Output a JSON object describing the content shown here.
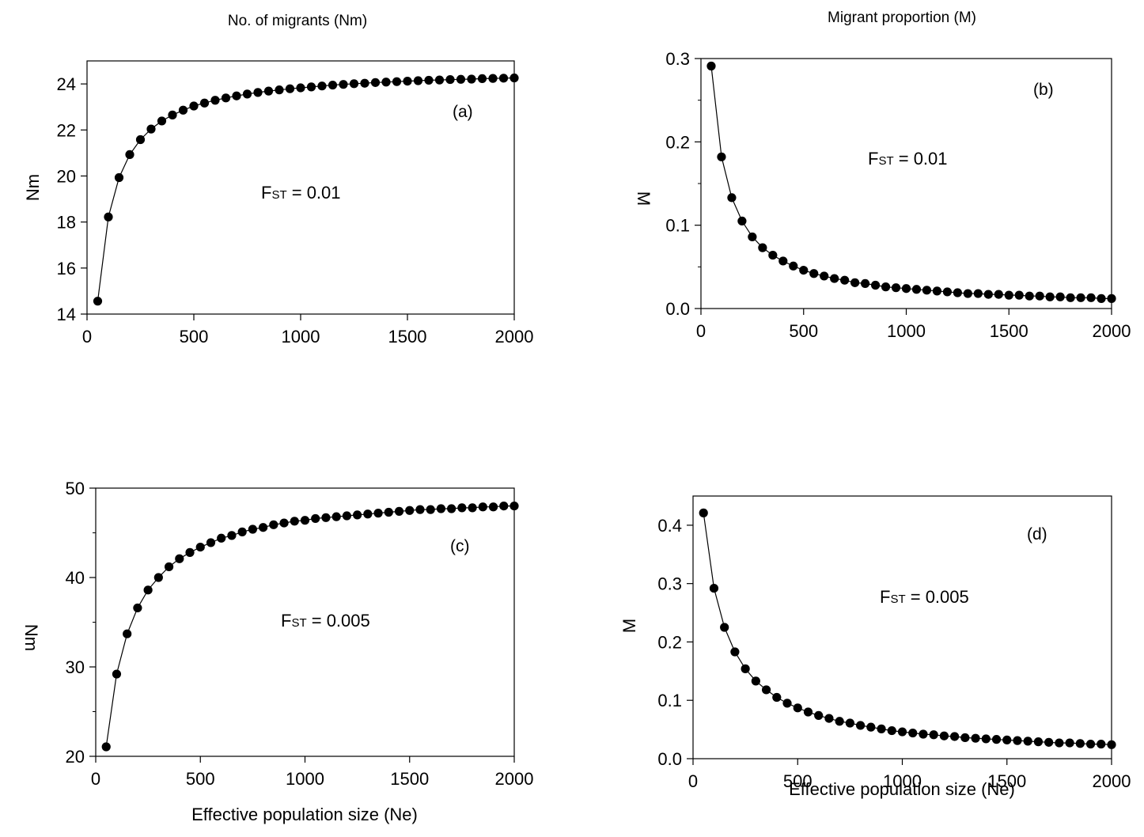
{
  "column_titles": {
    "left": "No. of migrants (Nm)",
    "right": "Migrant proportion (M)"
  },
  "chart_data": [
    {
      "id": "a",
      "type": "line",
      "panel_label": "(a)",
      "annotation": {
        "main": "F",
        "sub": "ST",
        "rest": " = 0.01"
      },
      "ylabel": "Nm",
      "xlabel": "",
      "xlim": [
        0,
        2000
      ],
      "ylim": [
        14,
        25
      ],
      "xticks": [
        0,
        500,
        1000,
        1500,
        2000
      ],
      "yticks": [
        14,
        16,
        18,
        20,
        22,
        24
      ],
      "yminor_step": null,
      "ylabel_flipped": false,
      "markers": "filled-circle",
      "x": [
        50,
        100,
        150,
        200,
        250,
        300,
        350,
        400,
        450,
        500,
        550,
        600,
        650,
        700,
        750,
        800,
        850,
        900,
        950,
        1000,
        1050,
        1100,
        1150,
        1200,
        1250,
        1300,
        1350,
        1400,
        1450,
        1500,
        1550,
        1600,
        1650,
        1700,
        1750,
        1800,
        1850,
        1900,
        1950,
        2000
      ],
      "y": [
        14.56,
        18.22,
        19.93,
        20.93,
        21.58,
        22.04,
        22.39,
        22.65,
        22.86,
        23.04,
        23.17,
        23.29,
        23.39,
        23.48,
        23.56,
        23.63,
        23.69,
        23.74,
        23.79,
        23.83,
        23.87,
        23.91,
        23.95,
        23.98,
        24.01,
        24.03,
        24.06,
        24.08,
        24.1,
        24.12,
        24.14,
        24.16,
        24.17,
        24.19,
        24.2,
        24.21,
        24.23,
        24.24,
        24.25,
        24.26
      ]
    },
    {
      "id": "b",
      "type": "line",
      "panel_label": "(b)",
      "annotation": {
        "main": "F",
        "sub": "ST",
        "rest": " = 0.01"
      },
      "ylabel": "M",
      "xlabel": "",
      "xlim": [
        0,
        2000
      ],
      "ylim": [
        0,
        0.3
      ],
      "xticks": [
        0,
        500,
        1000,
        1500,
        2000
      ],
      "yticks": [
        0.0,
        0.1,
        0.2,
        0.3
      ],
      "yminor_step": 0.05,
      "ylabel_flipped": true,
      "markers": "filled-circle",
      "x": [
        50,
        100,
        150,
        200,
        250,
        300,
        350,
        400,
        450,
        500,
        550,
        600,
        650,
        700,
        750,
        800,
        850,
        900,
        950,
        1000,
        1050,
        1100,
        1150,
        1200,
        1250,
        1300,
        1350,
        1400,
        1450,
        1500,
        1550,
        1600,
        1650,
        1700,
        1750,
        1800,
        1850,
        1900,
        1950,
        2000
      ],
      "y": [
        0.291,
        0.182,
        0.133,
        0.105,
        0.086,
        0.073,
        0.064,
        0.057,
        0.051,
        0.046,
        0.042,
        0.039,
        0.036,
        0.034,
        0.031,
        0.03,
        0.028,
        0.026,
        0.025,
        0.024,
        0.023,
        0.022,
        0.021,
        0.02,
        0.019,
        0.018,
        0.018,
        0.017,
        0.017,
        0.016,
        0.016,
        0.015,
        0.015,
        0.014,
        0.014,
        0.013,
        0.013,
        0.013,
        0.012,
        0.012
      ]
    },
    {
      "id": "c",
      "type": "line",
      "panel_label": "(c)",
      "annotation": {
        "main": "F",
        "sub": "ST",
        "rest": " = 0.005"
      },
      "ylabel": "Nm",
      "xlabel": "Effective population size (Ne)",
      "xlim": [
        0,
        2000
      ],
      "ylim": [
        20,
        50
      ],
      "xticks": [
        0,
        500,
        1000,
        1500,
        2000
      ],
      "yticks": [
        20,
        30,
        40,
        50
      ],
      "yminor_step": 5,
      "ylabel_flipped": true,
      "markers": "filled-circle",
      "x": [
        50,
        100,
        150,
        200,
        250,
        300,
        350,
        400,
        450,
        500,
        550,
        600,
        650,
        700,
        750,
        800,
        850,
        900,
        950,
        1000,
        1050,
        1100,
        1150,
        1200,
        1250,
        1300,
        1350,
        1400,
        1450,
        1500,
        1550,
        1600,
        1650,
        1700,
        1750,
        1800,
        1850,
        1900,
        1950,
        2000
      ],
      "y": [
        21.06,
        29.2,
        33.7,
        36.6,
        38.6,
        40.0,
        41.2,
        42.1,
        42.8,
        43.4,
        43.9,
        44.4,
        44.7,
        45.1,
        45.4,
        45.6,
        45.9,
        46.1,
        46.3,
        46.4,
        46.6,
        46.7,
        46.8,
        46.9,
        47.0,
        47.1,
        47.2,
        47.3,
        47.4,
        47.5,
        47.6,
        47.6,
        47.7,
        47.7,
        47.8,
        47.8,
        47.9,
        47.9,
        48.0,
        48.0
      ]
    },
    {
      "id": "d",
      "type": "line",
      "panel_label": "(d)",
      "annotation": {
        "main": "F",
        "sub": "ST",
        "rest": " = 0.005"
      },
      "ylabel": "M",
      "xlabel": "Effective population size (Ne)",
      "xlim": [
        0,
        2000
      ],
      "ylim": [
        0,
        0.45
      ],
      "xticks": [
        0,
        500,
        1000,
        1500,
        2000
      ],
      "yticks": [
        0.0,
        0.1,
        0.2,
        0.3,
        0.4
      ],
      "yminor_step": null,
      "ylabel_flipped": false,
      "markers": "filled-circle",
      "x": [
        50,
        100,
        150,
        200,
        250,
        300,
        350,
        400,
        450,
        500,
        550,
        600,
        650,
        700,
        750,
        800,
        850,
        900,
        950,
        1000,
        1050,
        1100,
        1150,
        1200,
        1250,
        1300,
        1350,
        1400,
        1450,
        1500,
        1550,
        1600,
        1650,
        1700,
        1750,
        1800,
        1850,
        1900,
        1950,
        2000
      ],
      "y": [
        0.421,
        0.292,
        0.225,
        0.183,
        0.154,
        0.133,
        0.118,
        0.105,
        0.095,
        0.087,
        0.08,
        0.074,
        0.069,
        0.064,
        0.061,
        0.057,
        0.054,
        0.051,
        0.048,
        0.046,
        0.044,
        0.042,
        0.041,
        0.039,
        0.038,
        0.036,
        0.035,
        0.034,
        0.033,
        0.032,
        0.031,
        0.03,
        0.029,
        0.028,
        0.027,
        0.027,
        0.026,
        0.025,
        0.025,
        0.024
      ]
    }
  ]
}
